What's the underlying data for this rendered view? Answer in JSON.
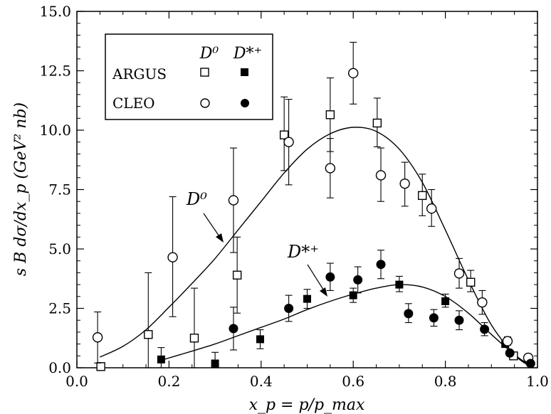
{
  "chart_data": {
    "type": "scatter",
    "xlabel": "x_p = p/p_max",
    "ylabel": "s B dσ/dx_p  (GeV² nb)",
    "xlim": [
      0.0,
      1.0
    ],
    "ylim": [
      0.0,
      15.0
    ],
    "x_ticks": [
      "0.0",
      "0.2",
      "0.4",
      "0.6",
      "0.8",
      "1.0"
    ],
    "y_ticks": [
      "0.0",
      "2.5",
      "5.0",
      "7.5",
      "10.0",
      "12.5",
      "15.0"
    ],
    "legend": {
      "placement": "top-left",
      "col_headers": [
        "D⁰",
        "D*⁺"
      ],
      "rows": [
        "ARGUS",
        "CLEO"
      ]
    },
    "annotations": [
      "D⁰",
      "D*⁺"
    ],
    "series": [
      {
        "name": "ARGUS D⁰",
        "marker": "open-square",
        "points": [
          {
            "x": 0.052,
            "y": 0.05,
            "lo": 0.05,
            "hi": 0.05
          },
          {
            "x": 0.155,
            "y": 1.4,
            "lo": 0.0,
            "hi": 4.0
          },
          {
            "x": 0.255,
            "y": 1.25,
            "lo": 0.0,
            "hi": 3.35
          },
          {
            "x": 0.348,
            "y": 3.9,
            "lo": 2.3,
            "hi": 5.5
          },
          {
            "x": 0.45,
            "y": 9.8,
            "lo": 8.3,
            "hi": 11.4
          },
          {
            "x": 0.55,
            "y": 10.65,
            "lo": 9.1,
            "hi": 12.2
          },
          {
            "x": 0.652,
            "y": 10.3,
            "lo": 9.3,
            "hi": 11.35
          },
          {
            "x": 0.75,
            "y": 7.25,
            "lo": 6.4,
            "hi": 8.15
          },
          {
            "x": 0.855,
            "y": 3.6,
            "lo": 3.2,
            "hi": 4.1
          },
          {
            "x": 0.948,
            "y": 0.5,
            "lo": 0.45,
            "hi": 0.55
          }
        ]
      },
      {
        "name": "ARGUS D*⁺",
        "marker": "filled-square",
        "points": [
          {
            "x": 0.183,
            "y": 0.35,
            "lo": 0.0,
            "hi": 0.85
          },
          {
            "x": 0.3,
            "y": 0.18,
            "lo": 0.0,
            "hi": 0.65
          },
          {
            "x": 0.398,
            "y": 1.2,
            "lo": 0.8,
            "hi": 1.6
          },
          {
            "x": 0.5,
            "y": 2.9,
            "lo": 2.5,
            "hi": 3.3
          },
          {
            "x": 0.6,
            "y": 3.05,
            "lo": 2.75,
            "hi": 3.35
          },
          {
            "x": 0.7,
            "y": 3.5,
            "lo": 3.2,
            "hi": 3.85
          },
          {
            "x": 0.8,
            "y": 2.8,
            "lo": 2.55,
            "hi": 3.1
          },
          {
            "x": 0.93,
            "y": 1.0,
            "lo": 0.9,
            "hi": 1.1
          }
        ]
      },
      {
        "name": "CLEO D⁰",
        "marker": "open-circle",
        "points": [
          {
            "x": 0.045,
            "y": 1.28,
            "lo": 0.2,
            "hi": 2.35
          },
          {
            "x": 0.208,
            "y": 4.65,
            "lo": 2.15,
            "hi": 7.2
          },
          {
            "x": 0.34,
            "y": 7.05,
            "lo": 4.85,
            "hi": 9.25
          },
          {
            "x": 0.46,
            "y": 9.5,
            "lo": 7.7,
            "hi": 11.3
          },
          {
            "x": 0.55,
            "y": 8.4,
            "lo": 7.15,
            "hi": 9.65
          },
          {
            "x": 0.6,
            "y": 12.4,
            "lo": 11.1,
            "hi": 13.7
          },
          {
            "x": 0.66,
            "y": 8.1,
            "lo": 7.0,
            "hi": 9.25
          },
          {
            "x": 0.712,
            "y": 7.75,
            "lo": 6.8,
            "hi": 8.65
          },
          {
            "x": 0.77,
            "y": 6.7,
            "lo": 5.95,
            "hi": 7.5
          },
          {
            "x": 0.83,
            "y": 3.97,
            "lo": 3.35,
            "hi": 4.6
          },
          {
            "x": 0.88,
            "y": 2.75,
            "lo": 2.25,
            "hi": 3.25
          },
          {
            "x": 0.935,
            "y": 1.12,
            "lo": 0.95,
            "hi": 1.3
          },
          {
            "x": 0.98,
            "y": 0.42,
            "lo": 0.32,
            "hi": 0.52
          }
        ]
      },
      {
        "name": "CLEO D*⁺",
        "marker": "filled-circle",
        "points": [
          {
            "x": 0.34,
            "y": 1.65,
            "lo": 0.75,
            "hi": 2.55
          },
          {
            "x": 0.46,
            "y": 2.5,
            "lo": 1.95,
            "hi": 3.05
          },
          {
            "x": 0.55,
            "y": 3.82,
            "lo": 3.25,
            "hi": 4.4
          },
          {
            "x": 0.61,
            "y": 3.7,
            "lo": 3.15,
            "hi": 4.25
          },
          {
            "x": 0.66,
            "y": 4.35,
            "lo": 3.75,
            "hi": 4.95
          },
          {
            "x": 0.72,
            "y": 2.28,
            "lo": 1.9,
            "hi": 2.7
          },
          {
            "x": 0.775,
            "y": 2.1,
            "lo": 1.75,
            "hi": 2.45
          },
          {
            "x": 0.83,
            "y": 2.0,
            "lo": 1.6,
            "hi": 2.4
          },
          {
            "x": 0.885,
            "y": 1.62,
            "lo": 1.35,
            "hi": 1.9
          },
          {
            "x": 0.94,
            "y": 0.62,
            "lo": 0.52,
            "hi": 0.72
          },
          {
            "x": 0.985,
            "y": 0.18,
            "lo": 0.12,
            "hi": 0.24
          }
        ]
      }
    ],
    "fits": [
      {
        "name": "D⁰ fit",
        "points": [
          [
            0.05,
            0.45
          ],
          [
            0.1,
            0.9
          ],
          [
            0.15,
            1.6
          ],
          [
            0.2,
            2.55
          ],
          [
            0.25,
            3.55
          ],
          [
            0.3,
            4.6
          ],
          [
            0.35,
            5.8
          ],
          [
            0.4,
            7.0
          ],
          [
            0.45,
            8.2
          ],
          [
            0.5,
            9.2
          ],
          [
            0.55,
            9.85
          ],
          [
            0.6,
            10.12
          ],
          [
            0.65,
            9.95
          ],
          [
            0.7,
            9.2
          ],
          [
            0.75,
            7.8
          ],
          [
            0.8,
            5.8
          ],
          [
            0.85,
            3.7
          ],
          [
            0.9,
            1.8
          ],
          [
            0.95,
            0.55
          ],
          [
            0.98,
            0.1
          ]
        ]
      },
      {
        "name": "D*⁺ fit",
        "points": [
          [
            0.18,
            0.3
          ],
          [
            0.25,
            0.7
          ],
          [
            0.3,
            1.0
          ],
          [
            0.35,
            1.35
          ],
          [
            0.4,
            1.7
          ],
          [
            0.45,
            2.05
          ],
          [
            0.5,
            2.45
          ],
          [
            0.55,
            2.8
          ],
          [
            0.6,
            3.1
          ],
          [
            0.65,
            3.35
          ],
          [
            0.7,
            3.5
          ],
          [
            0.75,
            3.4
          ],
          [
            0.8,
            3.0
          ],
          [
            0.85,
            2.3
          ],
          [
            0.9,
            1.4
          ],
          [
            0.95,
            0.55
          ],
          [
            0.98,
            0.15
          ]
        ]
      }
    ]
  }
}
